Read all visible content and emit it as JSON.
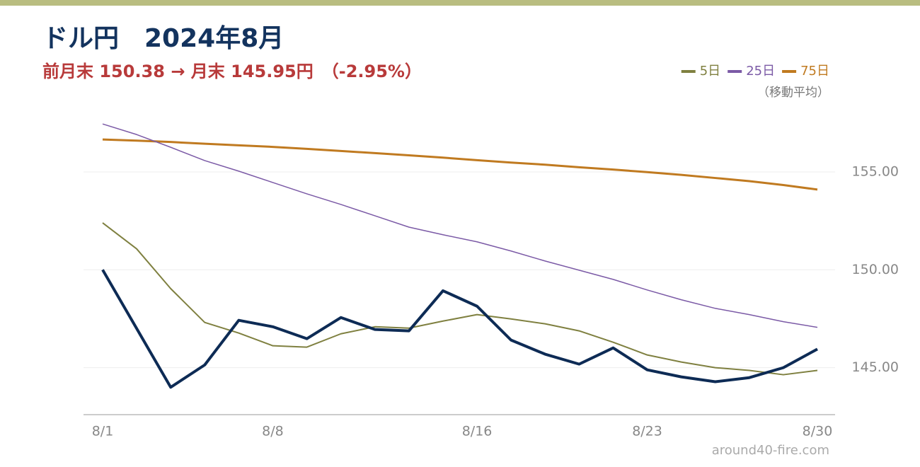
{
  "chart_data": {
    "type": "line",
    "title": "ドル円　2024年8月",
    "subtitle": "前月末 150.38 → 月末 145.95円　（-2.95%）",
    "legend_note": "（移動平均）",
    "source": "around40-fire.com",
    "categories": [
      "8/1",
      null,
      null,
      null,
      null,
      "8/8",
      null,
      null,
      null,
      null,
      null,
      "8/16",
      null,
      null,
      null,
      null,
      "8/23",
      null,
      null,
      null,
      null,
      "8/30"
    ],
    "series": [
      {
        "color": "#0d2b55",
        "values": [
          150.0,
          147.0,
          144.0,
          145.14,
          147.42,
          147.09,
          146.48,
          147.56,
          146.95,
          146.88,
          148.93,
          148.14,
          146.41,
          145.69,
          145.18,
          146.01,
          144.89,
          144.53,
          144.28,
          144.49,
          145.0,
          145.95
        ]
      },
      {
        "name": "5日",
        "color": "#7f8040",
        "values": [
          152.4,
          151.07,
          149.04,
          147.31,
          146.77,
          146.12,
          146.05,
          146.73,
          147.09,
          147.02,
          147.38,
          147.71,
          147.49,
          147.24,
          146.88,
          146.3,
          145.65,
          145.29,
          145.0,
          144.86,
          144.64,
          144.86
        ]
      },
      {
        "name": "25日",
        "color": "#7b5aa6",
        "values": [
          157.45,
          156.91,
          156.26,
          155.58,
          155.04,
          154.46,
          153.88,
          153.34,
          152.76,
          152.18,
          151.79,
          151.43,
          150.96,
          150.45,
          149.98,
          149.51,
          148.97,
          148.47,
          148.03,
          147.71,
          147.35,
          147.06
        ]
      },
      {
        "name": "75日",
        "color": "#c07a20",
        "values": [
          156.66,
          156.6,
          156.53,
          156.44,
          156.36,
          156.28,
          156.18,
          156.07,
          155.96,
          155.85,
          155.73,
          155.6,
          155.48,
          155.37,
          155.24,
          155.12,
          154.99,
          154.85,
          154.69,
          154.53,
          154.33,
          154.1
        ]
      }
    ],
    "ylim": [
      142.6,
      158
    ],
    "yticks": [
      {
        "value": 145,
        "label": "145.00"
      },
      {
        "value": 150,
        "label": "150.00"
      },
      {
        "value": 155,
        "label": "155.00"
      }
    ],
    "grid": true,
    "legend": "top-right"
  }
}
